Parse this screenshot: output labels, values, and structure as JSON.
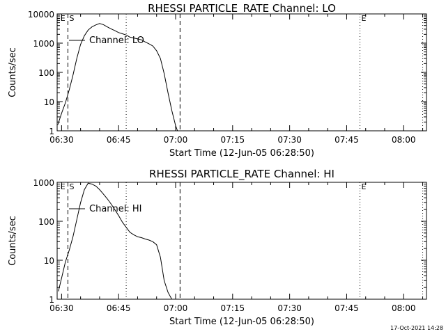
{
  "footer": {
    "timestamp": "17-Oct-2021 14:28"
  },
  "chart_data": [
    {
      "type": "line",
      "title": "RHESSI PARTICLE_RATE Channel: LO",
      "xlabel": "Start Time (12-Jun-05 06:28:50)",
      "ylabel": "Counts/sec",
      "y_scale": "log",
      "ylim": [
        1,
        10000
      ],
      "xlim": [
        "06:28:50",
        "08:06:00"
      ],
      "x_ticks": [
        "06:30",
        "06:45",
        "07:00",
        "07:15",
        "07:30",
        "07:45",
        "08:00"
      ],
      "y_ticks": [
        "1",
        "10",
        "100",
        "1000",
        "10000"
      ],
      "markers": [
        {
          "label": "E",
          "time": "06:29:20"
        },
        {
          "label": "S",
          "time": "06:31:40"
        },
        {
          "label": "E",
          "time": "07:48:30"
        }
      ],
      "dashed_lines": [
        "06:31:40",
        "07:01:10"
      ],
      "dotted_lines": [
        "06:47:00",
        "07:48:30",
        "08:05:00"
      ],
      "legend": "Channel: LO",
      "series": [
        {
          "name": "Channel: LO",
          "x": [
            "06:29:00",
            "06:30:00",
            "06:31:00",
            "06:32:00",
            "06:33:00",
            "06:34:00",
            "06:35:00",
            "06:36:00",
            "06:37:00",
            "06:38:00",
            "06:39:00",
            "06:40:00",
            "06:41:00",
            "06:42:00",
            "06:43:00",
            "06:44:00",
            "06:45:00",
            "06:46:00",
            "06:47:00",
            "06:48:00",
            "06:49:00",
            "06:50:00",
            "06:51:00",
            "06:52:00",
            "06:53:00",
            "06:54:00",
            "06:55:00",
            "06:56:00",
            "06:57:00",
            "06:58:00",
            "06:59:00",
            "07:00:00",
            "07:00:30"
          ],
          "y": [
            1.6,
            4,
            9,
            25,
            80,
            300,
            900,
            1800,
            2800,
            3600,
            4200,
            4700,
            4300,
            3600,
            3100,
            2700,
            2300,
            2100,
            1900,
            1600,
            1500,
            1400,
            1300,
            1100,
            950,
            800,
            550,
            300,
            90,
            20,
            5,
            1.5,
            1
          ]
        }
      ]
    },
    {
      "type": "line",
      "title": "RHESSI PARTICLE_RATE Channel: HI",
      "xlabel": "Start Time (12-Jun-05 06:28:50)",
      "ylabel": "Counts/sec",
      "y_scale": "log",
      "ylim": [
        1,
        1000
      ],
      "xlim": [
        "06:28:50",
        "08:06:00"
      ],
      "x_ticks": [
        "06:30",
        "06:45",
        "07:00",
        "07:15",
        "07:30",
        "07:45",
        "08:00"
      ],
      "y_ticks": [
        "1",
        "10",
        "100",
        "1000"
      ],
      "markers": [
        {
          "label": "E",
          "time": "06:29:20"
        },
        {
          "label": "S",
          "time": "06:31:40"
        },
        {
          "label": "E",
          "time": "07:48:30"
        }
      ],
      "dashed_lines": [
        "06:31:40",
        "07:01:10"
      ],
      "dotted_lines": [
        "06:47:00",
        "07:48:30",
        "08:05:00"
      ],
      "legend": "Channel: HI",
      "series": [
        {
          "name": "Channel: HI",
          "x": [
            "06:29:10",
            "06:30:00",
            "06:31:00",
            "06:32:00",
            "06:33:00",
            "06:34:00",
            "06:35:00",
            "06:36:00",
            "06:37:00",
            "06:38:00",
            "06:39:00",
            "06:40:00",
            "06:41:00",
            "06:42:00",
            "06:43:00",
            "06:44:00",
            "06:45:00",
            "06:46:00",
            "06:47:00",
            "06:48:00",
            "06:49:00",
            "06:50:00",
            "06:51:00",
            "06:52:00",
            "06:53:00",
            "06:54:00",
            "06:55:00",
            "06:56:00",
            "06:57:00",
            "06:58:00",
            "06:59:00",
            "07:00:00"
          ],
          "y": [
            1.6,
            3.5,
            9,
            18,
            40,
            110,
            300,
            650,
            950,
            900,
            800,
            650,
            500,
            380,
            280,
            200,
            140,
            95,
            70,
            52,
            45,
            40,
            38,
            35,
            33,
            30,
            25,
            12,
            3,
            1.5,
            1,
            1
          ]
        }
      ]
    }
  ]
}
